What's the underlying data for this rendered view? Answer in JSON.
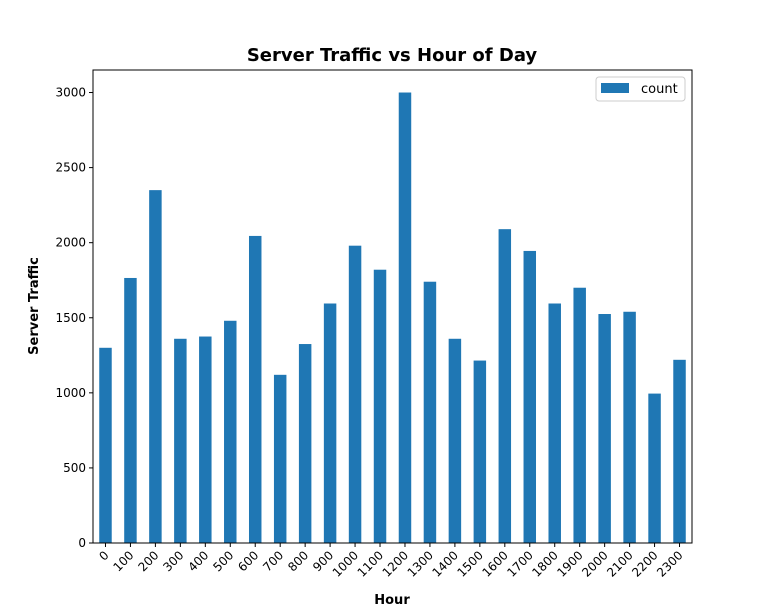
{
  "chart_data": {
    "type": "bar",
    "title": "Server Traffic vs Hour of Day",
    "xlabel": "Hour",
    "ylabel": "Server Traffic",
    "categories": [
      "0",
      "100",
      "200",
      "300",
      "400",
      "500",
      "600",
      "700",
      "800",
      "900",
      "1000",
      "1100",
      "1200",
      "1300",
      "1400",
      "1500",
      "1600",
      "1700",
      "1800",
      "1900",
      "2000",
      "2100",
      "2200",
      "2300"
    ],
    "series": [
      {
        "name": "count",
        "color": "#1f77b4",
        "values": [
          1300,
          1765,
          2350,
          1360,
          1375,
          1480,
          2045,
          1120,
          1325,
          1595,
          1980,
          1820,
          3000,
          1740,
          1360,
          1215,
          2090,
          1945,
          1595,
          1700,
          1525,
          1540,
          995,
          1220
        ]
      }
    ],
    "ylim": [
      0,
      3150
    ],
    "yticks": [
      0,
      500,
      1000,
      1500,
      2000,
      2500,
      3000
    ],
    "grid": false,
    "legend": "top-right"
  }
}
